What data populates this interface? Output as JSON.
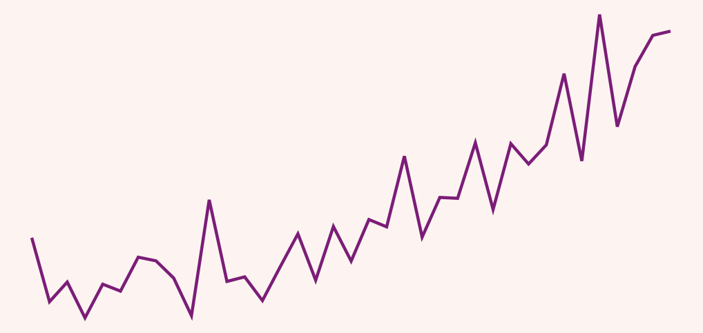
{
  "chart_data": {
    "type": "line",
    "title": "",
    "xlabel": "",
    "ylabel": "",
    "grid": false,
    "background_color": "#fdf4f1",
    "x": [
      1,
      2,
      3,
      4,
      5,
      6,
      7,
      8,
      9,
      10,
      11,
      12,
      13,
      14,
      15,
      16,
      17,
      18,
      19,
      20,
      21,
      22,
      23,
      24,
      25,
      26,
      27,
      28,
      29,
      30,
      31,
      32,
      33,
      34,
      35,
      36,
      37
    ],
    "xlim": [
      1,
      37
    ],
    "ylim": [
      0,
      100
    ],
    "series": [
      {
        "color": "#7b1d78",
        "values": [
          26.4,
          5.3,
          11.8,
          0.0,
          11.1,
          8.8,
          20.0,
          18.8,
          13.1,
          0.7,
          38.9,
          12.0,
          13.5,
          5.7,
          16.8,
          27.7,
          12.4,
          30.1,
          18.7,
          32.4,
          30.0,
          53.3,
          26.6,
          39.7,
          39.4,
          57.7,
          35.7,
          57.4,
          50.7,
          57.0,
          80.5,
          51.7,
          100.0,
          63.0,
          82.8,
          93.1,
          94.5
        ]
      }
    ]
  }
}
